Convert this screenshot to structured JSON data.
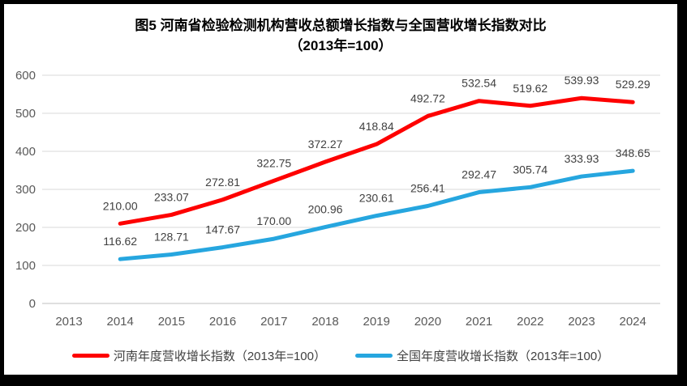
{
  "frame": {
    "background": "#ffffff",
    "border_color": "#000000"
  },
  "chart_data": {
    "type": "line",
    "title": "图5  河南省检验检测机构营收总额增长指数与全国营收增长指数对比",
    "subtitle": "（2013年=100）",
    "categories": [
      "2013",
      "2014",
      "2015",
      "2016",
      "2017",
      "2018",
      "2019",
      "2020",
      "2021",
      "2022",
      "2023",
      "2024"
    ],
    "start_index": 1,
    "series": [
      {
        "name": "河南年度营收增长指数（2013年=100）",
        "color": "#FE0000",
        "values": [
          210.0,
          233.07,
          272.81,
          322.75,
          372.27,
          418.84,
          492.72,
          532.54,
          519.62,
          539.93,
          529.29
        ]
      },
      {
        "name": "全国年度营收增长指数（2013年=100）",
        "color": "#26A6DF",
        "values": [
          116.62,
          128.71,
          147.67,
          170.0,
          200.96,
          230.61,
          256.41,
          292.47,
          305.74,
          333.93,
          348.65
        ]
      }
    ],
    "ylim": [
      0,
      600
    ],
    "yticks": [
      0,
      100,
      200,
      300,
      400,
      500,
      600
    ],
    "grid": true,
    "data_labels": true,
    "label_decimals": 2,
    "legend_position": "bottom",
    "colors": {
      "gridline": "#D9D9D9",
      "axis_line": "#BFBFBF",
      "tick_label": "#595959",
      "data_label": "#404040",
      "legend_text": "#404040",
      "title_text": "#000000"
    }
  }
}
